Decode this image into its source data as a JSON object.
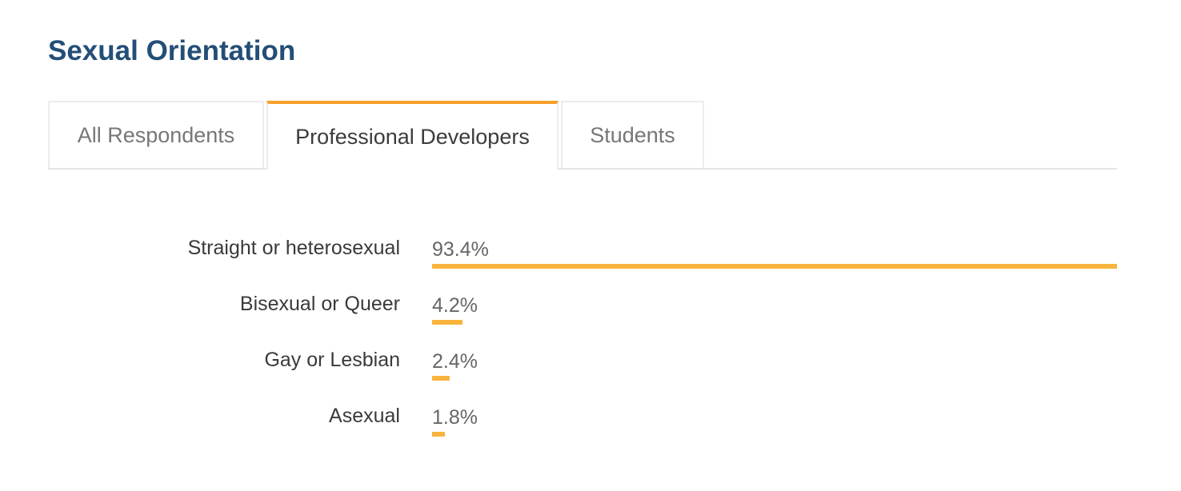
{
  "section": {
    "title": "Sexual Orientation"
  },
  "tabs": [
    {
      "label": "All Respondents",
      "active": false
    },
    {
      "label": "Professional Developers",
      "active": true
    },
    {
      "label": "Students",
      "active": false
    }
  ],
  "colors": {
    "title": "#234e77",
    "active_tab_accent": "#f7a02a",
    "bar": "#f9b43d"
  },
  "chart_data": {
    "type": "bar",
    "orientation": "horizontal",
    "categories": [
      "Straight or heterosexual",
      "Bisexual or Queer",
      "Gay or Lesbian",
      "Asexual"
    ],
    "values": [
      93.4,
      4.2,
      2.4,
      1.8
    ],
    "value_labels": [
      "93.4%",
      "4.2%",
      "2.4%",
      "1.8%"
    ],
    "unit": "%",
    "title": "",
    "xlabel": "",
    "ylabel": "",
    "grid": false,
    "legend": "none"
  }
}
